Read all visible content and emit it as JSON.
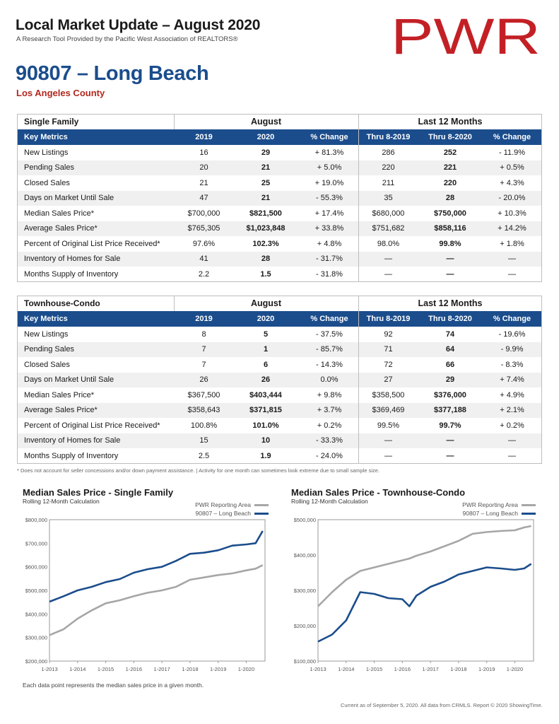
{
  "header": {
    "title": "Local Market Update – August 2020",
    "subtitle": "A Research Tool Provided by the Pacific West Association of REALTORS®",
    "logo_text": "PWR",
    "brand_color": "#c32026"
  },
  "area": {
    "title": "90807 – Long Beach",
    "county": "Los Angeles County"
  },
  "tables": [
    {
      "name": "Single Family",
      "group_august": "August",
      "group_12": "Last 12 Months",
      "columns": [
        "Key Metrics",
        "2019",
        "2020",
        "% Change",
        "Thru 8-2019",
        "Thru 8-2020",
        "% Change"
      ],
      "rows": [
        [
          "New Listings",
          "16",
          "29",
          "+ 81.3%",
          "286",
          "252",
          "- 11.9%"
        ],
        [
          "Pending Sales",
          "20",
          "21",
          "+ 5.0%",
          "220",
          "221",
          "+ 0.5%"
        ],
        [
          "Closed Sales",
          "21",
          "25",
          "+ 19.0%",
          "211",
          "220",
          "+ 4.3%"
        ],
        [
          "Days on Market Until Sale",
          "47",
          "21",
          "- 55.3%",
          "35",
          "28",
          "- 20.0%"
        ],
        [
          "Median Sales Price*",
          "$700,000",
          "$821,500",
          "+ 17.4%",
          "$680,000",
          "$750,000",
          "+ 10.3%"
        ],
        [
          "Average Sales Price*",
          "$765,305",
          "$1,023,848",
          "+ 33.8%",
          "$751,682",
          "$858,116",
          "+ 14.2%"
        ],
        [
          "Percent of Original List Price Received*",
          "97.6%",
          "102.3%",
          "+ 4.8%",
          "98.0%",
          "99.8%",
          "+ 1.8%"
        ],
        [
          "Inventory of Homes for Sale",
          "41",
          "28",
          "- 31.7%",
          "—",
          "—",
          "—"
        ],
        [
          "Months Supply of Inventory",
          "2.2",
          "1.5",
          "- 31.8%",
          "—",
          "—",
          "—"
        ]
      ]
    },
    {
      "name": "Townhouse-Condo",
      "group_august": "August",
      "group_12": "Last 12 Months",
      "columns": [
        "Key Metrics",
        "2019",
        "2020",
        "% Change",
        "Thru 8-2019",
        "Thru 8-2020",
        "% Change"
      ],
      "rows": [
        [
          "New Listings",
          "8",
          "5",
          "- 37.5%",
          "92",
          "74",
          "- 19.6%"
        ],
        [
          "Pending Sales",
          "7",
          "1",
          "- 85.7%",
          "71",
          "64",
          "- 9.9%"
        ],
        [
          "Closed Sales",
          "7",
          "6",
          "- 14.3%",
          "72",
          "66",
          "- 8.3%"
        ],
        [
          "Days on Market Until Sale",
          "26",
          "26",
          "0.0%",
          "27",
          "29",
          "+ 7.4%"
        ],
        [
          "Median Sales Price*",
          "$367,500",
          "$403,444",
          "+ 9.8%",
          "$358,500",
          "$376,000",
          "+ 4.9%"
        ],
        [
          "Average Sales Price*",
          "$358,643",
          "$371,815",
          "+ 3.7%",
          "$369,469",
          "$377,188",
          "+ 2.1%"
        ],
        [
          "Percent of Original List Price Received*",
          "100.8%",
          "101.0%",
          "+ 0.2%",
          "99.5%",
          "99.7%",
          "+ 0.2%"
        ],
        [
          "Inventory of Homes for Sale",
          "15",
          "10",
          "- 33.3%",
          "—",
          "—",
          "—"
        ],
        [
          "Months Supply of Inventory",
          "2.5",
          "1.9",
          "- 24.0%",
          "—",
          "—",
          "—"
        ]
      ]
    }
  ],
  "footnote": "* Does not account for seller concessions and/or down payment assistance. | Activity for one month can sometimes look extreme due to small sample size.",
  "charts_text": {
    "each_note": "Each data point represents the median sales price in a given month.",
    "current": "Current as of September 5, 2020. All data from CRMLS. Report © 2020 ShowingTime."
  },
  "colors": {
    "table_header": "#1b4d8c",
    "area_line": "#a6a6a6",
    "zip_line": "#1b4d8c"
  },
  "chart_data": [
    {
      "type": "line",
      "title": "Median Sales Price - Single Family",
      "subtitle": "Rolling 12-Month Calculation",
      "xlabel": "",
      "ylabel": "",
      "ylim": [
        200000,
        800000
      ],
      "y_ticks": [
        "$200,000",
        "$300,000",
        "$400,000",
        "$500,000",
        "$600,000",
        "$700,000",
        "$800,000"
      ],
      "x_ticks": [
        "1-2013",
        "1-2014",
        "1-2015",
        "1-2016",
        "1-2017",
        "1-2018",
        "1-2019",
        "1-2020"
      ],
      "x": [
        "1-2013",
        "7-2013",
        "1-2014",
        "7-2014",
        "1-2015",
        "7-2015",
        "1-2016",
        "7-2016",
        "1-2017",
        "7-2017",
        "1-2018",
        "7-2018",
        "1-2019",
        "7-2019",
        "1-2020",
        "5-2020",
        "8-2020"
      ],
      "series": [
        {
          "name": "PWR Reporting Area",
          "values": [
            310000,
            335000,
            380000,
            415000,
            445000,
            458000,
            475000,
            490000,
            500000,
            515000,
            545000,
            555000,
            565000,
            572000,
            585000,
            592000,
            607000
          ]
        },
        {
          "name": "90807 – Long Beach",
          "values": [
            452000,
            475000,
            500000,
            515000,
            535000,
            548000,
            575000,
            590000,
            600000,
            625000,
            655000,
            660000,
            670000,
            690000,
            695000,
            700000,
            752000
          ]
        }
      ],
      "legend": "top-right",
      "grid": false
    },
    {
      "type": "line",
      "title": "Median Sales Price - Townhouse-Condo",
      "subtitle": "Rolling 12-Month Calculation",
      "xlabel": "",
      "ylabel": "",
      "ylim": [
        100000,
        500000
      ],
      "y_ticks": [
        "$100,000",
        "$200,000",
        "$300,000",
        "$400,000",
        "$500,000"
      ],
      "x_ticks": [
        "1-2013",
        "1-2014",
        "1-2015",
        "1-2016",
        "1-2017",
        "1-2018",
        "1-2019",
        "1-2020"
      ],
      "x": [
        "1-2013",
        "7-2013",
        "1-2014",
        "7-2014",
        "1-2015",
        "7-2015",
        "1-2016",
        "4-2016",
        "7-2016",
        "1-2017",
        "7-2017",
        "1-2018",
        "7-2018",
        "1-2019",
        "7-2019",
        "1-2020",
        "5-2020",
        "8-2020"
      ],
      "series": [
        {
          "name": "PWR Reporting Area",
          "values": [
            255000,
            295000,
            330000,
            355000,
            365000,
            375000,
            385000,
            390000,
            398000,
            410000,
            425000,
            440000,
            460000,
            465000,
            468000,
            470000,
            478000,
            482000
          ]
        },
        {
          "name": "90807 – Long Beach",
          "values": [
            155000,
            175000,
            215000,
            295000,
            290000,
            278000,
            275000,
            255000,
            285000,
            310000,
            325000,
            345000,
            355000,
            365000,
            362000,
            358000,
            362000,
            375000
          ]
        }
      ],
      "legend": "top-right",
      "grid": false
    }
  ]
}
